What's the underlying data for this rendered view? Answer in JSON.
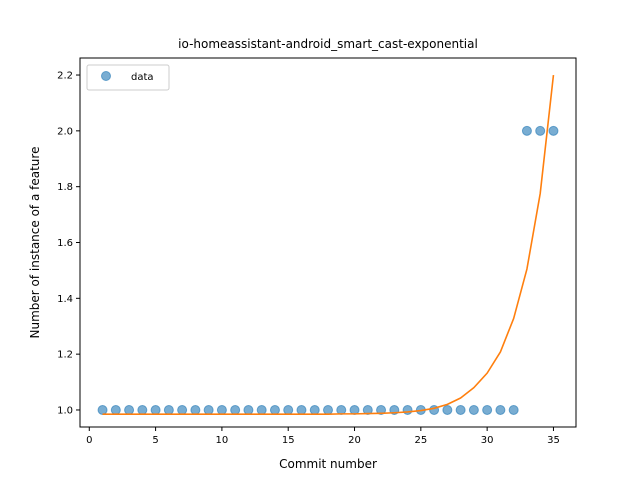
{
  "chart_data": {
    "type": "scatter",
    "title": "io-homeassistant-android_smart_cast-exponential",
    "xlabel": "Commit number",
    "ylabel": "Number of instance of a feature",
    "xlim": [
      -0.7,
      36.7
    ],
    "ylim": [
      0.939,
      2.261
    ],
    "x_ticks": [
      0,
      5,
      10,
      15,
      20,
      25,
      30,
      35
    ],
    "x_tick_labels": [
      "0",
      "5",
      "10",
      "15",
      "20",
      "25",
      "30",
      "35"
    ],
    "y_ticks": [
      1.0,
      1.2,
      1.4,
      1.6,
      1.8,
      2.0,
      2.2
    ],
    "y_tick_labels": [
      "1.0",
      "1.2",
      "1.4",
      "1.6",
      "1.8",
      "2.0",
      "2.2"
    ],
    "grid": false,
    "legend": {
      "placement": "top-left",
      "entries": [
        "data"
      ]
    },
    "series": [
      {
        "name": "data",
        "kind": "scatter",
        "color": "#1f77b4",
        "x": [
          1,
          2,
          3,
          4,
          5,
          6,
          7,
          8,
          9,
          10,
          11,
          12,
          13,
          14,
          15,
          16,
          17,
          18,
          19,
          20,
          21,
          22,
          23,
          24,
          25,
          26,
          27,
          28,
          29,
          30,
          31,
          32,
          33,
          34,
          35
        ],
        "y": [
          1,
          1,
          1,
          1,
          1,
          1,
          1,
          1,
          1,
          1,
          1,
          1,
          1,
          1,
          1,
          1,
          1,
          1,
          1,
          1,
          1,
          1,
          1,
          1,
          1,
          1,
          1,
          1,
          1,
          1,
          1,
          1,
          2,
          2,
          2
        ]
      },
      {
        "kind": "line",
        "color": "#ff7f0e",
        "x": [
          1,
          2,
          3,
          4,
          5,
          6,
          7,
          8,
          9,
          10,
          11,
          12,
          13,
          14,
          15,
          16,
          17,
          18,
          19,
          20,
          21,
          22,
          23,
          24,
          25,
          26,
          27,
          28,
          29,
          30,
          31,
          32,
          33,
          34,
          35
        ],
        "y": [
          0.985,
          0.985,
          0.985,
          0.985,
          0.985,
          0.985,
          0.985,
          0.985,
          0.985,
          0.985,
          0.985,
          0.985,
          0.985,
          0.985,
          0.985,
          0.985,
          0.985,
          0.985,
          0.986,
          0.986,
          0.987,
          0.988,
          0.99,
          0.993,
          0.998,
          1.006,
          1.02,
          1.043,
          1.08,
          1.132,
          1.208,
          1.328,
          1.505,
          1.775,
          2.2
        ]
      }
    ]
  }
}
